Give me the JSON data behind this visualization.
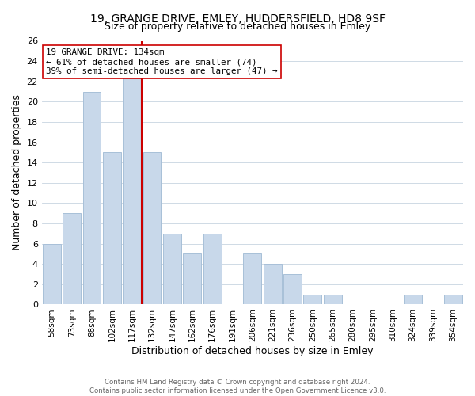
{
  "title": "19, GRANGE DRIVE, EMLEY, HUDDERSFIELD, HD8 9SF",
  "subtitle": "Size of property relative to detached houses in Emley",
  "xlabel": "Distribution of detached houses by size in Emley",
  "ylabel": "Number of detached properties",
  "bins": [
    "58sqm",
    "73sqm",
    "88sqm",
    "102sqm",
    "117sqm",
    "132sqm",
    "147sqm",
    "162sqm",
    "176sqm",
    "191sqm",
    "206sqm",
    "221sqm",
    "236sqm",
    "250sqm",
    "265sqm",
    "280sqm",
    "295sqm",
    "310sqm",
    "324sqm",
    "339sqm",
    "354sqm"
  ],
  "values": [
    6,
    9,
    21,
    15,
    23,
    15,
    7,
    5,
    7,
    0,
    5,
    4,
    3,
    1,
    1,
    0,
    0,
    0,
    1,
    0,
    1
  ],
  "bar_color": "#c8d8ea",
  "bar_edgecolor": "#a8c0d8",
  "vline_color": "#cc0000",
  "vline_x": 4.5,
  "ylim": [
    0,
    26
  ],
  "yticks": [
    0,
    2,
    4,
    6,
    8,
    10,
    12,
    14,
    16,
    18,
    20,
    22,
    24,
    26
  ],
  "annotation_box_line1": "19 GRANGE DRIVE: 134sqm",
  "annotation_box_line2": "← 61% of detached houses are smaller (74)",
  "annotation_box_line3": "39% of semi-detached houses are larger (47) →",
  "annotation_box_color": "#ffffff",
  "annotation_box_edgecolor": "#cc0000",
  "footer_line1": "Contains HM Land Registry data © Crown copyright and database right 2024.",
  "footer_line2": "Contains public sector information licensed under the Open Government Licence v3.0.",
  "title_fontsize": 10,
  "subtitle_fontsize": 9,
  "background_color": "#ffffff",
  "grid_color": "#c8d4e0"
}
